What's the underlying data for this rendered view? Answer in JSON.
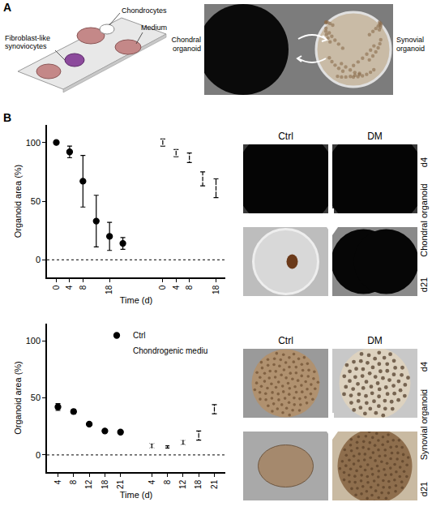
{
  "panel_labels": [
    "A",
    "B"
  ],
  "schematic_labels": [
    "Chondrocytes",
    "Medium",
    "Fibroblast-like synoviocytes"
  ],
  "chip_photo_labels": [
    "Chondral organoid",
    "Synovial organoid"
  ],
  "photo_grids": [
    {
      "title": "Chondral organoid",
      "columns": [
        "Ctrl",
        "DM"
      ],
      "rows": [
        "d4",
        "d21"
      ]
    },
    {
      "title": "Synovial organoid",
      "columns": [
        "Ctrl",
        "DM"
      ],
      "rows": [
        "d4",
        "d21"
      ]
    }
  ],
  "chart_data": [
    {
      "type": "scatter",
      "x_label": "Time (d)",
      "y_label": "Organoid area (%)",
      "categories": [
        "0",
        "4",
        "8",
        null,
        "18",
        null,
        null,
        null,
        "0",
        "4",
        "8",
        null,
        "18"
      ],
      "ylim": [
        -15,
        115
      ],
      "yticks": [
        0,
        50,
        100
      ],
      "grid": false,
      "baseline": 0,
      "series": [
        {
          "color": "#000000",
          "marker": "circle",
          "values": [
            100,
            92,
            67,
            33,
            20,
            14,
            null,
            null,
            null,
            null,
            null,
            null,
            null
          ],
          "errors": [
            0,
            5,
            22,
            22,
            12,
            5,
            null,
            null,
            null,
            null,
            null,
            null,
            null
          ]
        },
        {
          "color": "#000000",
          "marker": "circle-open",
          "values": [
            null,
            null,
            null,
            null,
            null,
            null,
            null,
            null,
            100,
            91,
            87,
            69,
            61
          ],
          "errors": [
            null,
            null,
            null,
            null,
            null,
            null,
            null,
            null,
            3,
            3,
            4,
            6,
            8
          ]
        }
      ]
    },
    {
      "type": "scatter",
      "x_label": "Time (d)",
      "y_label": "Organoid area (%)",
      "categories": [
        "4",
        "8",
        "12",
        "18",
        "21",
        null,
        "4",
        "8",
        "12",
        "18",
        "21"
      ],
      "ylim": [
        -15,
        115
      ],
      "yticks": [
        0,
        50,
        100
      ],
      "grid": false,
      "baseline": 0,
      "legend": "top",
      "series": [
        {
          "name": "Ctrl",
          "color": "#000000",
          "marker": "circle",
          "values": [
            42,
            38,
            27,
            21,
            20,
            null,
            null,
            null,
            null,
            null,
            null
          ],
          "errors": [
            3,
            2,
            1,
            1,
            1,
            null,
            null,
            null,
            null,
            null,
            null
          ]
        },
        {
          "name": "Chondrogenic mediu",
          "color": "#000000",
          "marker": "circle-open",
          "values": [
            null,
            null,
            null,
            null,
            null,
            null,
            8,
            7,
            11,
            17,
            40
          ],
          "errors": [
            null,
            null,
            null,
            null,
            null,
            null,
            2,
            1,
            2,
            4,
            4
          ]
        }
      ]
    }
  ]
}
